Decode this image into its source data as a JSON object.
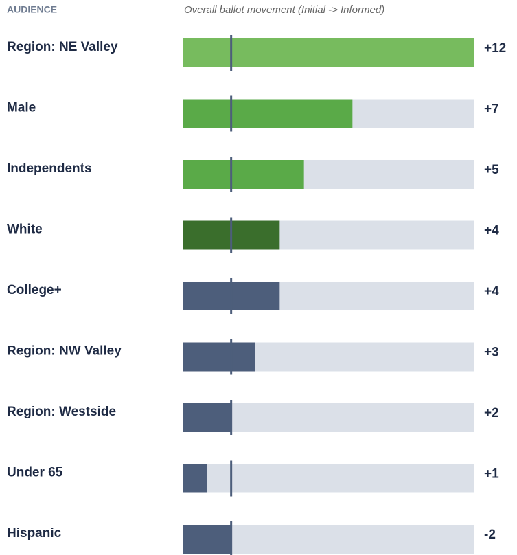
{
  "chart_data": {
    "type": "bar",
    "category_header": "AUDIENCE",
    "subtitle": "Overall ballot movement (Initial -> Informed)",
    "categories": [
      "Region: NE Valley",
      "Male",
      "Independents",
      "White",
      "College+",
      "Region: NW Valley",
      "Region: Westside",
      "Under 65",
      "Hispanic"
    ],
    "values": [
      12,
      7,
      5,
      4,
      4,
      3,
      2,
      1,
      -2
    ],
    "value_labels": [
      "+12",
      "+7",
      "+5",
      "+4",
      "+4",
      "+3",
      "+2",
      "+1",
      "-2"
    ],
    "colors": [
      "#77bb5e",
      "#5aaa48",
      "#5aaa48",
      "#3a6e2c",
      "#4d5e7b",
      "#4d5e7b",
      "#4d5e7b",
      "#4d5e7b",
      "#4d5e7b"
    ],
    "track_color": "#dbe0e8",
    "reference_value": 2,
    "xlim": [
      0,
      12
    ]
  }
}
